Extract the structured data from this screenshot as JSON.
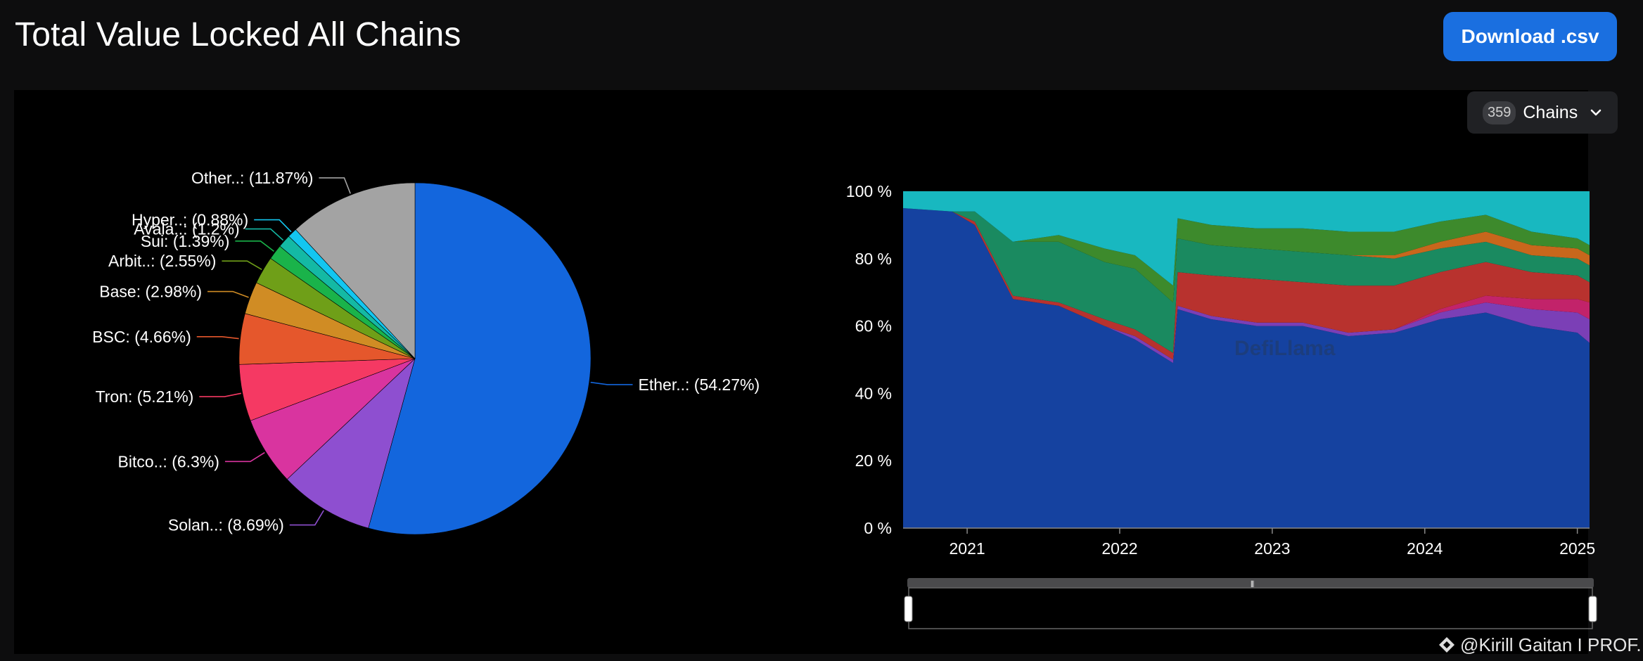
{
  "header": {
    "title": "Total Value Locked All Chains",
    "download_label": "Download .csv"
  },
  "chains_selector": {
    "count": "359",
    "label": "Chains"
  },
  "credit": "@Kirill Gaitan I PROF...",
  "watermark": "DefiLlama",
  "chart_data": [
    {
      "type": "pie",
      "slices": [
        {
          "label": "Ether..",
          "value": 54.27,
          "color": "#1366dd",
          "label_text": "Ether..: (54.27%)"
        },
        {
          "label": "Solan..",
          "value": 8.69,
          "color": "#8e4fd0",
          "label_text": "Solan..: (8.69%)"
        },
        {
          "label": "Bitco..",
          "value": 6.3,
          "color": "#d9349f",
          "label_text": "Bitco..: (6.3%)"
        },
        {
          "label": "Tron",
          "value": 5.21,
          "color": "#f53963",
          "label_text": "Tron: (5.21%)"
        },
        {
          "label": "BSC",
          "value": 4.66,
          "color": "#e5572c",
          "label_text": "BSC: (4.66%)"
        },
        {
          "label": "Base",
          "value": 2.98,
          "color": "#d08c24",
          "label_text": "Base: (2.98%)"
        },
        {
          "label": "Arbit..",
          "value": 2.55,
          "color": "#6f9f18",
          "label_text": "Arbit..: (2.55%)"
        },
        {
          "label": "Sui",
          "value": 1.39,
          "color": "#1ab34a",
          "label_text": "Sui: (1.39%)"
        },
        {
          "label": "Avala..",
          "value": 1.2,
          "color": "#14b9a4",
          "label_text": "Avala..: (1.2%)"
        },
        {
          "label": "Hyper..",
          "value": 0.88,
          "color": "#13c6f0",
          "label_text": "Hyper..: (0.88%)"
        },
        {
          "label": "Other..",
          "value": 11.87,
          "color": "#a3a3a3",
          "label_text": "Other..: (11.87%)"
        }
      ]
    },
    {
      "type": "area",
      "stacked": true,
      "percent": true,
      "ylim": [
        0,
        100
      ],
      "y_ticks": [
        "100 %",
        "80 %",
        "60 %",
        "40 %",
        "20 %",
        "0 %"
      ],
      "x_ticks": [
        "2021",
        "2022",
        "2023",
        "2024",
        "2025"
      ],
      "xlim": [
        2020.58,
        2025.08
      ],
      "series_order_bottom_to_top": [
        "Ethereum",
        "Solana",
        "Bitcoin",
        "Tron",
        "BSC",
        "Base",
        "Arbitrum",
        "Others"
      ],
      "colors": [
        "#1542a0",
        "#7b3fb6",
        "#c2236a",
        "#b8322e",
        "#1a8a60",
        "#c8671c",
        "#3d8a2c",
        "#18b8c0"
      ],
      "x": [
        2020.58,
        2020.9,
        2021.05,
        2021.3,
        2021.6,
        2021.9,
        2022.1,
        2022.35,
        2022.38,
        2022.6,
        2022.9,
        2023.2,
        2023.5,
        2023.8,
        2024.1,
        2024.4,
        2024.7,
        2025.0,
        2025.08
      ],
      "series": [
        {
          "name": "Ethereum",
          "values": [
            95,
            94,
            90,
            68,
            66,
            60,
            56,
            49,
            65,
            62,
            60,
            60,
            57,
            58,
            62,
            64,
            60,
            58,
            55
          ]
        },
        {
          "name": "Solana",
          "values": [
            0,
            0,
            0,
            0,
            0,
            0,
            1,
            1,
            1,
            1,
            1,
            1,
            1,
            1,
            2,
            3,
            5,
            6,
            7
          ]
        },
        {
          "name": "Bitcoin",
          "values": [
            0,
            0,
            0,
            0,
            0,
            0,
            0,
            0,
            0,
            0,
            0,
            0,
            0,
            0,
            1,
            2,
            3,
            4,
            5
          ]
        },
        {
          "name": "Tron",
          "values": [
            0,
            0,
            1,
            1,
            1,
            2,
            2,
            2,
            10,
            12,
            13,
            12,
            14,
            13,
            11,
            10,
            8,
            7,
            6
          ]
        },
        {
          "name": "BSC",
          "values": [
            0,
            0,
            3,
            16,
            18,
            17,
            18,
            15,
            10,
            9,
            9,
            9,
            9,
            8,
            7,
            6,
            5,
            5,
            5
          ]
        },
        {
          "name": "Base",
          "values": [
            0,
            0,
            0,
            0,
            0,
            0,
            0,
            0,
            0,
            0,
            0,
            0,
            0,
            1,
            2,
            3,
            3,
            3,
            3
          ]
        },
        {
          "name": "Arbitrum",
          "values": [
            0,
            0,
            0,
            0,
            2,
            4,
            4,
            5,
            6,
            6,
            6,
            7,
            7,
            7,
            6,
            5,
            4,
            3,
            3
          ]
        },
        {
          "name": "Others",
          "values": [
            5,
            6,
            6,
            15,
            13,
            17,
            19,
            28,
            8,
            10,
            11,
            11,
            12,
            12,
            9,
            7,
            12,
            14,
            16
          ]
        }
      ]
    }
  ]
}
